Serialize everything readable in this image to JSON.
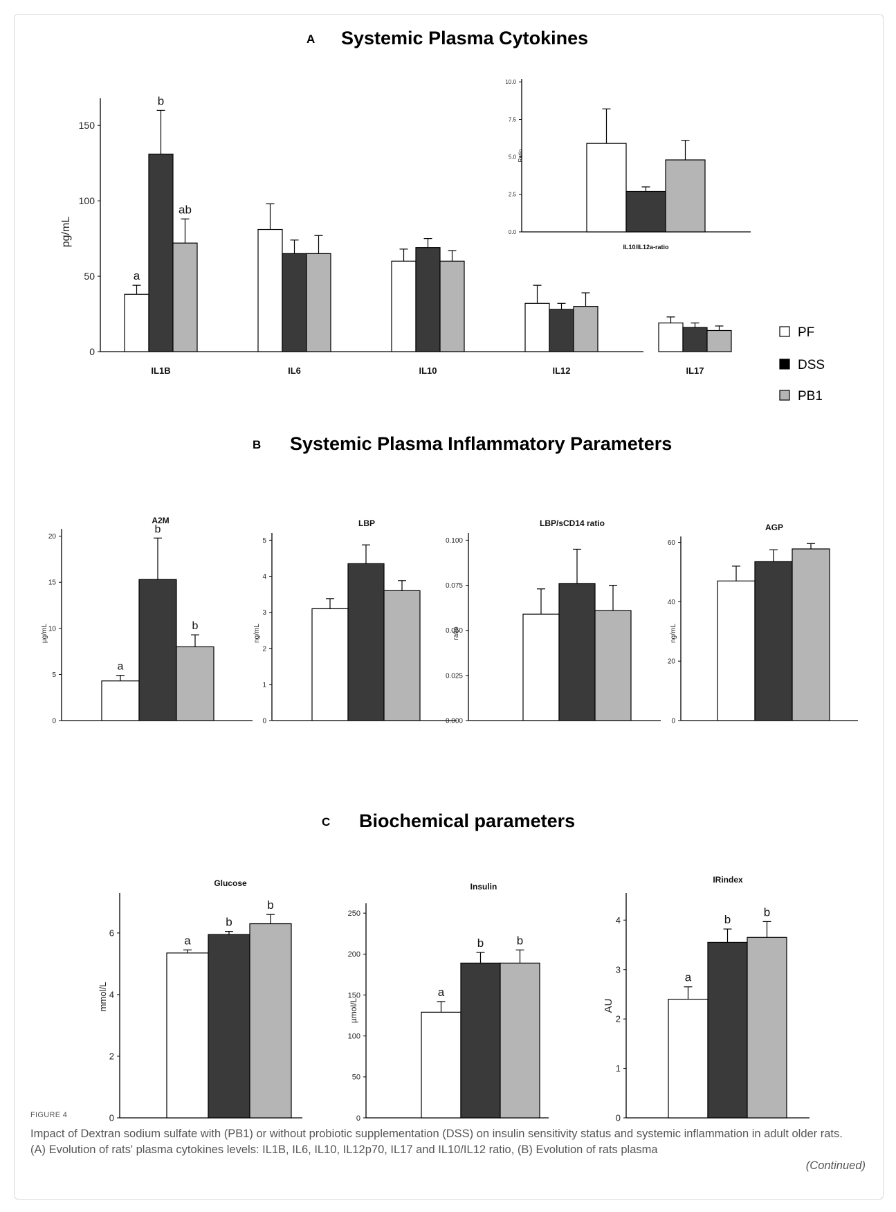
{
  "figure": {
    "caption_label": "FIGURE 4",
    "caption_text": "Impact of Dextran sodium sulfate with (PB1) or without probiotic supplementation (DSS) on insulin sensitivity status and systemic inflammation in adult older rats. (A) Evolution of rats' plasma cytokines levels: IL1B, IL6, IL10, IL12p70, IL17 and IL10/IL12 ratio, (B) Evolution of rats plasma",
    "continued": "(Continued)"
  },
  "groups": [
    {
      "name": "PF",
      "color": "#ffffff"
    },
    {
      "name": "DSS",
      "color": "#3a3a3a"
    },
    {
      "name": "PB1",
      "color": "#b5b5b5"
    }
  ],
  "panels": {
    "A": {
      "letter": "A",
      "title": "Systemic Plasma Cytokines"
    },
    "B": {
      "letter": "B",
      "title": "Systemic Plasma Inflammatory Parameters"
    },
    "C": {
      "letter": "C",
      "title": "Biochemical parameters"
    }
  },
  "chart_data": [
    {
      "id": "A-main",
      "type": "bar",
      "title": "",
      "ylabel": "pg/mL",
      "categories": [
        "IL1B",
        "IL6",
        "IL10",
        "IL12",
        "IL17"
      ],
      "ylim": [
        0,
        168
      ],
      "yticks": [
        "0",
        "50",
        "100",
        "150"
      ],
      "series": [
        {
          "name": "PF",
          "values": [
            38,
            81,
            60,
            32,
            19
          ],
          "errors": [
            6,
            17,
            8,
            12,
            4
          ],
          "letters": [
            "a",
            "",
            "",
            "",
            ""
          ]
        },
        {
          "name": "DSS",
          "values": [
            131,
            65,
            69,
            28,
            16
          ],
          "errors": [
            29,
            9,
            6,
            4,
            3
          ],
          "letters": [
            "b",
            "",
            "",
            "",
            ""
          ]
        },
        {
          "name": "PB1",
          "values": [
            72,
            65,
            60,
            30,
            14
          ],
          "errors": [
            16,
            12,
            7,
            9,
            3
          ],
          "letters": [
            "ab",
            "",
            "",
            "",
            ""
          ]
        }
      ]
    },
    {
      "id": "A-inset",
      "type": "bar",
      "title": "",
      "ylabel": "Ratio",
      "categories": [
        "IL10/IL12a-ratio"
      ],
      "ylim": [
        0,
        10.2
      ],
      "yticks": [
        "0.0",
        "2.5",
        "5.0",
        "7.5",
        "10.0"
      ],
      "series": [
        {
          "name": "PF",
          "values": [
            5.9
          ],
          "errors": [
            2.3
          ],
          "letters": [
            ""
          ]
        },
        {
          "name": "DSS",
          "values": [
            2.7
          ],
          "errors": [
            0.3
          ],
          "letters": [
            ""
          ]
        },
        {
          "name": "PB1",
          "values": [
            4.8
          ],
          "errors": [
            1.3
          ],
          "letters": [
            ""
          ]
        }
      ]
    },
    {
      "id": "B-A2M",
      "type": "bar",
      "title": "A2M",
      "ylabel": "µg/mL",
      "categories": [
        ""
      ],
      "ylim": [
        0,
        20.8
      ],
      "yticks": [
        "0",
        "5",
        "10",
        "15",
        "20"
      ],
      "series": [
        {
          "name": "PF",
          "values": [
            4.3
          ],
          "errors": [
            0.6
          ],
          "letters": [
            "a"
          ]
        },
        {
          "name": "DSS",
          "values": [
            15.3
          ],
          "errors": [
            4.5
          ],
          "letters": [
            "b"
          ]
        },
        {
          "name": "PB1",
          "values": [
            8.0
          ],
          "errors": [
            1.3
          ],
          "letters": [
            "b"
          ]
        }
      ]
    },
    {
      "id": "B-LBP",
      "type": "bar",
      "title": "LBP",
      "ylabel": "ng/mL",
      "categories": [
        ""
      ],
      "ylim": [
        0,
        5.2
      ],
      "yticks": [
        "0",
        "1",
        "2",
        "3",
        "4",
        "5"
      ],
      "series": [
        {
          "name": "PF",
          "values": [
            3.1
          ],
          "errors": [
            0.28
          ],
          "letters": [
            ""
          ]
        },
        {
          "name": "DSS",
          "values": [
            4.35
          ],
          "errors": [
            0.52
          ],
          "letters": [
            ""
          ]
        },
        {
          "name": "PB1",
          "values": [
            3.6
          ],
          "errors": [
            0.28
          ],
          "letters": [
            ""
          ]
        }
      ]
    },
    {
      "id": "B-LBPsCD14",
      "type": "bar",
      "title": "LBP/sCD14 ratio",
      "ylabel": "ratio",
      "categories": [
        ""
      ],
      "ylim": [
        0,
        0.104
      ],
      "yticks": [
        "0.000",
        "0.025",
        "0.050",
        "0.075",
        "0.100"
      ],
      "series": [
        {
          "name": "PF",
          "values": [
            0.059
          ],
          "errors": [
            0.014
          ],
          "letters": [
            ""
          ]
        },
        {
          "name": "DSS",
          "values": [
            0.076
          ],
          "errors": [
            0.019
          ],
          "letters": [
            ""
          ]
        },
        {
          "name": "PB1",
          "values": [
            0.061
          ],
          "errors": [
            0.014
          ],
          "letters": [
            ""
          ]
        }
      ]
    },
    {
      "id": "B-AGP",
      "type": "bar",
      "title": "AGP",
      "ylabel": "ng/mL",
      "categories": [
        ""
      ],
      "ylim": [
        0,
        62
      ],
      "yticks": [
        "0",
        "20",
        "40",
        "60"
      ],
      "series": [
        {
          "name": "PF",
          "values": [
            47
          ],
          "errors": [
            5
          ],
          "letters": [
            ""
          ]
        },
        {
          "name": "DSS",
          "values": [
            53.5
          ],
          "errors": [
            4
          ],
          "letters": [
            ""
          ]
        },
        {
          "name": "PB1",
          "values": [
            57.8
          ],
          "errors": [
            1.8
          ],
          "letters": [
            ""
          ]
        }
      ]
    },
    {
      "id": "C-Glucose",
      "type": "bar",
      "title": "Glucose",
      "ylabel": "mmol/L",
      "categories": [
        ""
      ],
      "ylim": [
        0,
        7.3
      ],
      "yticks": [
        "0",
        "2",
        "4",
        "6"
      ],
      "series": [
        {
          "name": "PF",
          "values": [
            5.35
          ],
          "errors": [
            0.1
          ],
          "letters": [
            "a"
          ]
        },
        {
          "name": "DSS",
          "values": [
            5.95
          ],
          "errors": [
            0.1
          ],
          "letters": [
            "b"
          ]
        },
        {
          "name": "PB1",
          "values": [
            6.3
          ],
          "errors": [
            0.3
          ],
          "letters": [
            "b"
          ]
        }
      ]
    },
    {
      "id": "C-Insulin",
      "type": "bar",
      "title": "Insulin",
      "ylabel": "µmol/L",
      "categories": [
        ""
      ],
      "ylim": [
        0,
        262
      ],
      "yticks": [
        "0",
        "50",
        "100",
        "150",
        "200",
        "250"
      ],
      "series": [
        {
          "name": "PF",
          "values": [
            129
          ],
          "errors": [
            13
          ],
          "letters": [
            "a"
          ]
        },
        {
          "name": "DSS",
          "values": [
            189
          ],
          "errors": [
            13
          ],
          "letters": [
            "b"
          ]
        },
        {
          "name": "PB1",
          "values": [
            189
          ],
          "errors": [
            16
          ],
          "letters": [
            "b"
          ]
        }
      ]
    },
    {
      "id": "C-IRindex",
      "type": "bar",
      "title": "IRindex",
      "ylabel": "AU",
      "categories": [
        ""
      ],
      "ylim": [
        0,
        4.55
      ],
      "yticks": [
        "0",
        "1",
        "2",
        "3",
        "4"
      ],
      "series": [
        {
          "name": "PF",
          "values": [
            2.4
          ],
          "errors": [
            0.25
          ],
          "letters": [
            "a"
          ]
        },
        {
          "name": "DSS",
          "values": [
            3.55
          ],
          "errors": [
            0.27
          ],
          "letters": [
            "b"
          ]
        },
        {
          "name": "PB1",
          "values": [
            3.65
          ],
          "errors": [
            0.32
          ],
          "letters": [
            "b"
          ]
        }
      ]
    }
  ]
}
